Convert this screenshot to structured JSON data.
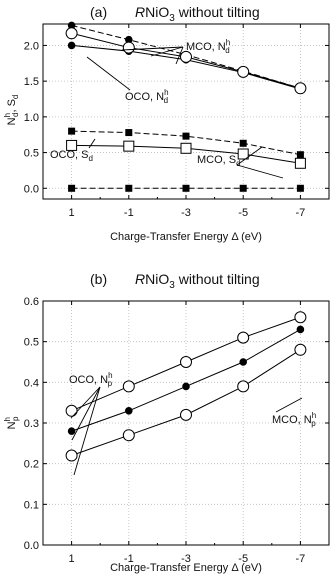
{
  "chart_data": [
    {
      "type": "line",
      "panel_label": "(a)",
      "title": "RNiO3 without tilting",
      "xlabel": "Charge-Transfer Energy Δ (eV)",
      "ylabel": "Nhd, Sd",
      "x": [
        1,
        -1,
        -3,
        -5,
        -7
      ],
      "x_tick_labels": [
        "1",
        "-1",
        "-3",
        "-5",
        "-7"
      ],
      "xlim": [
        2,
        -8
      ],
      "ylim": [
        -0.15,
        2.3
      ],
      "y_ticks": [
        0.0,
        0.5,
        1.0,
        1.5,
        2.0
      ],
      "y_tick_labels": [
        "0.0",
        "0.5",
        "1.0",
        "1.5",
        "2.0"
      ],
      "grid": true,
      "series": [
        {
          "group": "MCO, N^h_d",
          "marker": "filled-circle",
          "line": "dashed",
          "values": [
            2.28,
            2.08,
            1.87,
            1.64,
            1.4
          ]
        },
        {
          "group": "MCO, N^h_d",
          "marker": "filled-circle",
          "line": "solid",
          "values": [
            2.0,
            1.92,
            1.8,
            1.62,
            1.39
          ]
        },
        {
          "group": "OCO, N^h_d",
          "marker": "open-circle",
          "line": "solid",
          "values": [
            2.17,
            1.97,
            1.84,
            1.63,
            1.4
          ]
        },
        {
          "group": "MCO, S_d",
          "marker": "filled-square",
          "line": "dashed",
          "values": [
            0.8,
            0.78,
            0.73,
            0.63,
            0.47
          ]
        },
        {
          "group": "OCO, S_d",
          "marker": "open-square",
          "line": "solid",
          "values": [
            0.6,
            0.59,
            0.56,
            0.48,
            0.35
          ]
        },
        {
          "group": "MCO, S_d",
          "marker": "filled-square",
          "line": "dashed",
          "values": [
            0.0,
            0.0,
            0.0,
            0.0,
            0.0
          ]
        }
      ],
      "annotations": [
        {
          "text": "MCO, N",
          "sup": "h",
          "sub": "d"
        },
        {
          "text": "OCO, N",
          "sup": "h",
          "sub": "d"
        },
        {
          "text": "OCO, S",
          "sub": "d"
        },
        {
          "text": "MCO, S",
          "sub": "d"
        }
      ]
    },
    {
      "type": "line",
      "panel_label": "(b)",
      "title": "RNiO3 without tilting",
      "xlabel": "Charge-Transfer Energy Δ (eV)",
      "ylabel": "Nhp",
      "x": [
        1,
        -1,
        -3,
        -5,
        -7
      ],
      "x_tick_labels": [
        "1",
        "-1",
        "-3",
        "-5",
        "-7"
      ],
      "xlim": [
        2,
        -8
      ],
      "ylim": [
        0.0,
        0.6
      ],
      "y_ticks": [
        0.0,
        0.1,
        0.2,
        0.3,
        0.4,
        0.5,
        0.6
      ],
      "y_tick_labels": [
        "0.0",
        "0.1",
        "0.2",
        "0.3",
        "0.4",
        "0.5",
        "0.6"
      ],
      "grid": true,
      "series": [
        {
          "group": "OCO, N^h_p",
          "marker": "open-circle",
          "line": "solid",
          "values": [
            0.33,
            0.39,
            0.45,
            0.51,
            0.56
          ]
        },
        {
          "group": "MCO, N^h_p",
          "marker": "filled-circle",
          "line": "solid",
          "values": [
            0.28,
            0.33,
            0.39,
            0.45,
            0.53
          ]
        },
        {
          "group": "OCO, N^h_p",
          "marker": "open-circle",
          "line": "solid",
          "values": [
            0.22,
            0.27,
            0.32,
            0.39,
            0.48
          ]
        }
      ],
      "annotations": [
        {
          "text": "OCO, N",
          "sup": "h",
          "sub": "p"
        },
        {
          "text": "MCO, N",
          "sup": "h",
          "sub": "p"
        }
      ]
    }
  ]
}
